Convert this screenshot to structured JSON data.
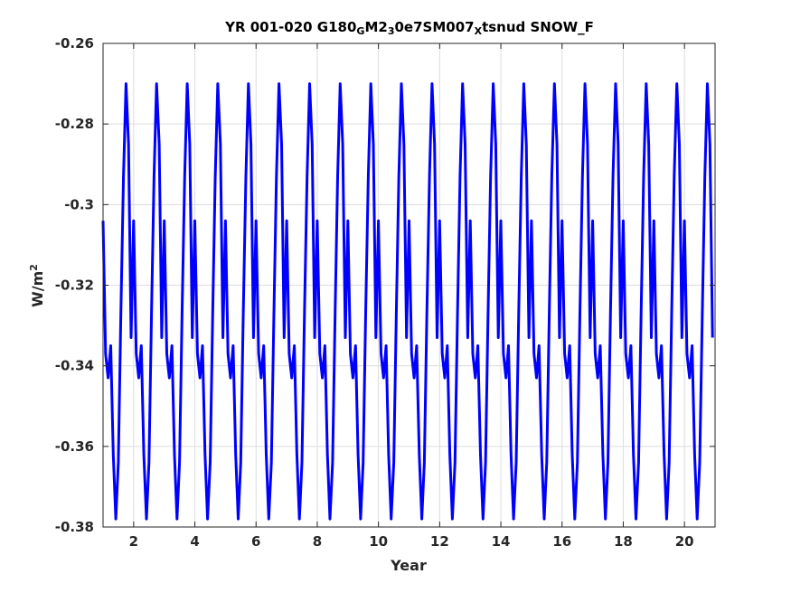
{
  "chart_data": {
    "type": "line",
    "title": {
      "parts": [
        {
          "text": "YR 001-020 G180",
          "style": "normal"
        },
        {
          "text": "G",
          "style": "sub"
        },
        {
          "text": "M2",
          "style": "normal"
        },
        {
          "text": "3",
          "style": "sub"
        },
        {
          "text": "0e7SM007",
          "style": "normal"
        },
        {
          "text": "X",
          "style": "sub"
        },
        {
          "text": "tsnud SNOW_F",
          "style": "normal"
        }
      ]
    },
    "xlabel": "Year",
    "ylabel": {
      "base": "W/m",
      "sup": "2"
    },
    "xlim": [
      1,
      21
    ],
    "ylim": [
      -0.38,
      -0.26
    ],
    "xticks": [
      2,
      4,
      6,
      8,
      10,
      12,
      14,
      16,
      18,
      20
    ],
    "xtick_labels": [
      "2",
      "4",
      "6",
      "8",
      "10",
      "12",
      "14",
      "16",
      "18",
      "20"
    ],
    "yticks": [
      -0.38,
      -0.36,
      -0.34,
      -0.32,
      -0.3,
      -0.28,
      -0.26
    ],
    "ytick_labels": [
      "-0.38",
      "-0.36",
      "-0.34",
      "-0.32",
      "-0.3",
      "-0.28",
      "-0.26"
    ],
    "grid": true,
    "series": [
      {
        "color": "#0000ff",
        "sampling": "monthly, 20 identical years",
        "x_start": 1.0,
        "x_step": 0.08333,
        "annual_cycle": [
          -0.304,
          -0.337,
          -0.343,
          -0.335,
          -0.362,
          -0.378,
          -0.364,
          -0.327,
          -0.293,
          -0.27,
          -0.285,
          -0.333
        ],
        "repeat_years": 20
      }
    ]
  }
}
